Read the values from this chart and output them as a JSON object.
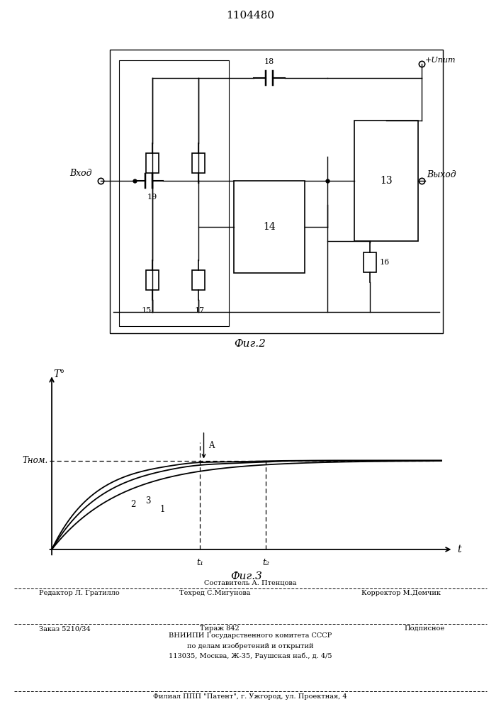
{
  "title": "1104480",
  "fig2_caption": "Фиг.2",
  "fig3_caption": "Фиг.3",
  "bg_color": "#ffffff",
  "line_color": "#000000",
  "footer": {
    "line1": "Составитель А. Птенцова",
    "line2_left": "Редактор Л. Гратилло",
    "line2_mid": "Техред С.Мигунова",
    "line2_right": "Корректор М.Демчик",
    "line3_left": "Заказ 5210/34",
    "line3_mid": "Тираж 842",
    "line3_right": "Подписное",
    "line4": "ВНИИПИ Государственного комитета СССР",
    "line5": "по делам изобретений и открытий",
    "line6": "113035, Москва, Ж-35, Раушская наб., д. 4/5",
    "line7": "Филиал ППП \"Патент\", г. Ужгород, ул. Проектная, 4"
  }
}
